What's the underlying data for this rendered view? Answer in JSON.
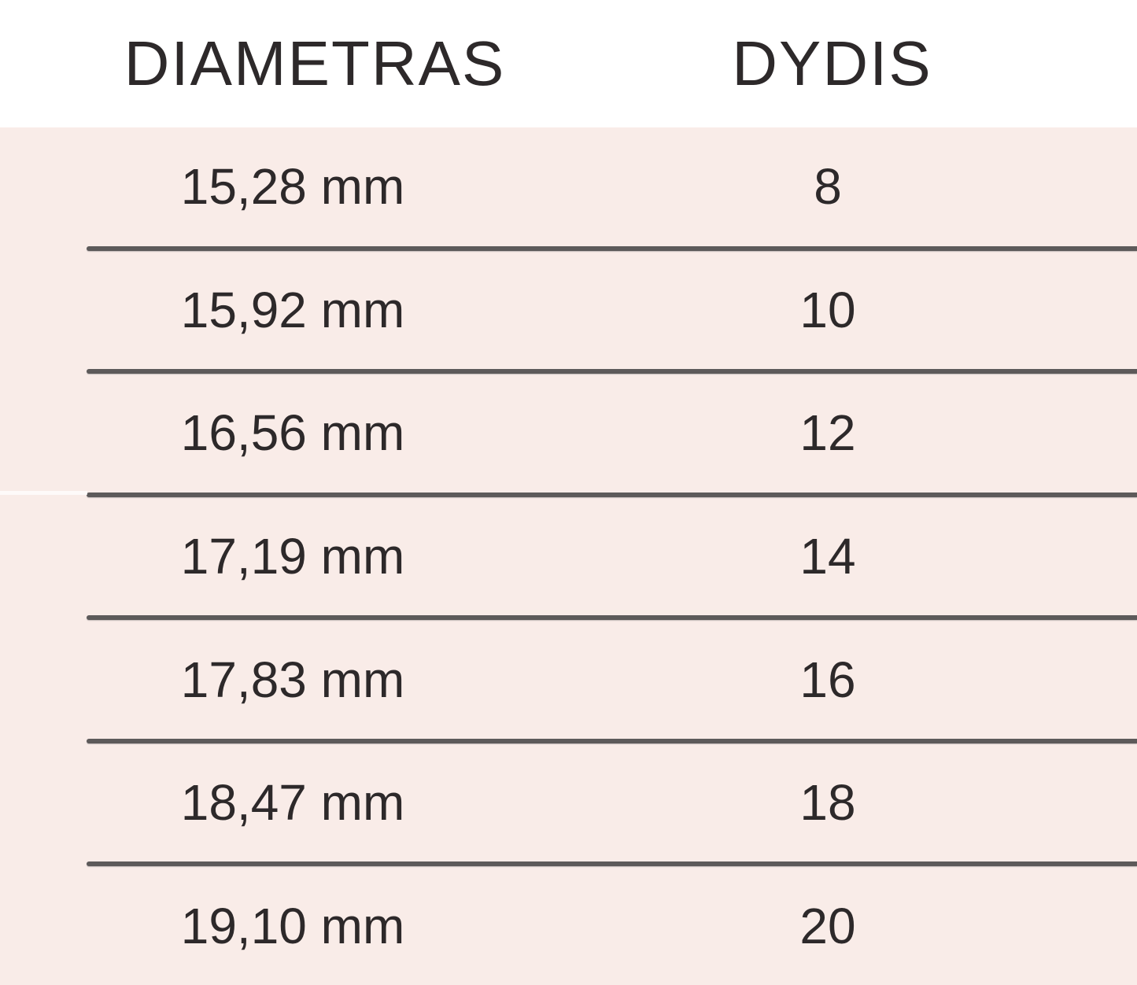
{
  "chart_data": {
    "type": "table",
    "columns": [
      "DIAMETRAS",
      "DYDIS"
    ],
    "rows": [
      [
        "15,28 mm",
        "8"
      ],
      [
        "15,92 mm",
        "10"
      ],
      [
        "16,56 mm",
        "12"
      ],
      [
        "17,19 mm",
        "14"
      ],
      [
        "17,83 mm",
        "16"
      ],
      [
        "18,47 mm",
        "18"
      ],
      [
        "19,10 mm",
        "20"
      ]
    ],
    "diameters_mm": [
      15.28,
      15.92,
      16.56,
      17.19,
      17.83,
      18.47,
      19.1
    ],
    "sizes": [
      8,
      10,
      12,
      14,
      16,
      18,
      20
    ],
    "title": "",
    "legend": "none",
    "grid": "horizontal-rules"
  },
  "colors": {
    "background": "#f9ece8",
    "header_background": "#ffffff",
    "text": "#2d292a",
    "divider": "#5d5a5a"
  }
}
